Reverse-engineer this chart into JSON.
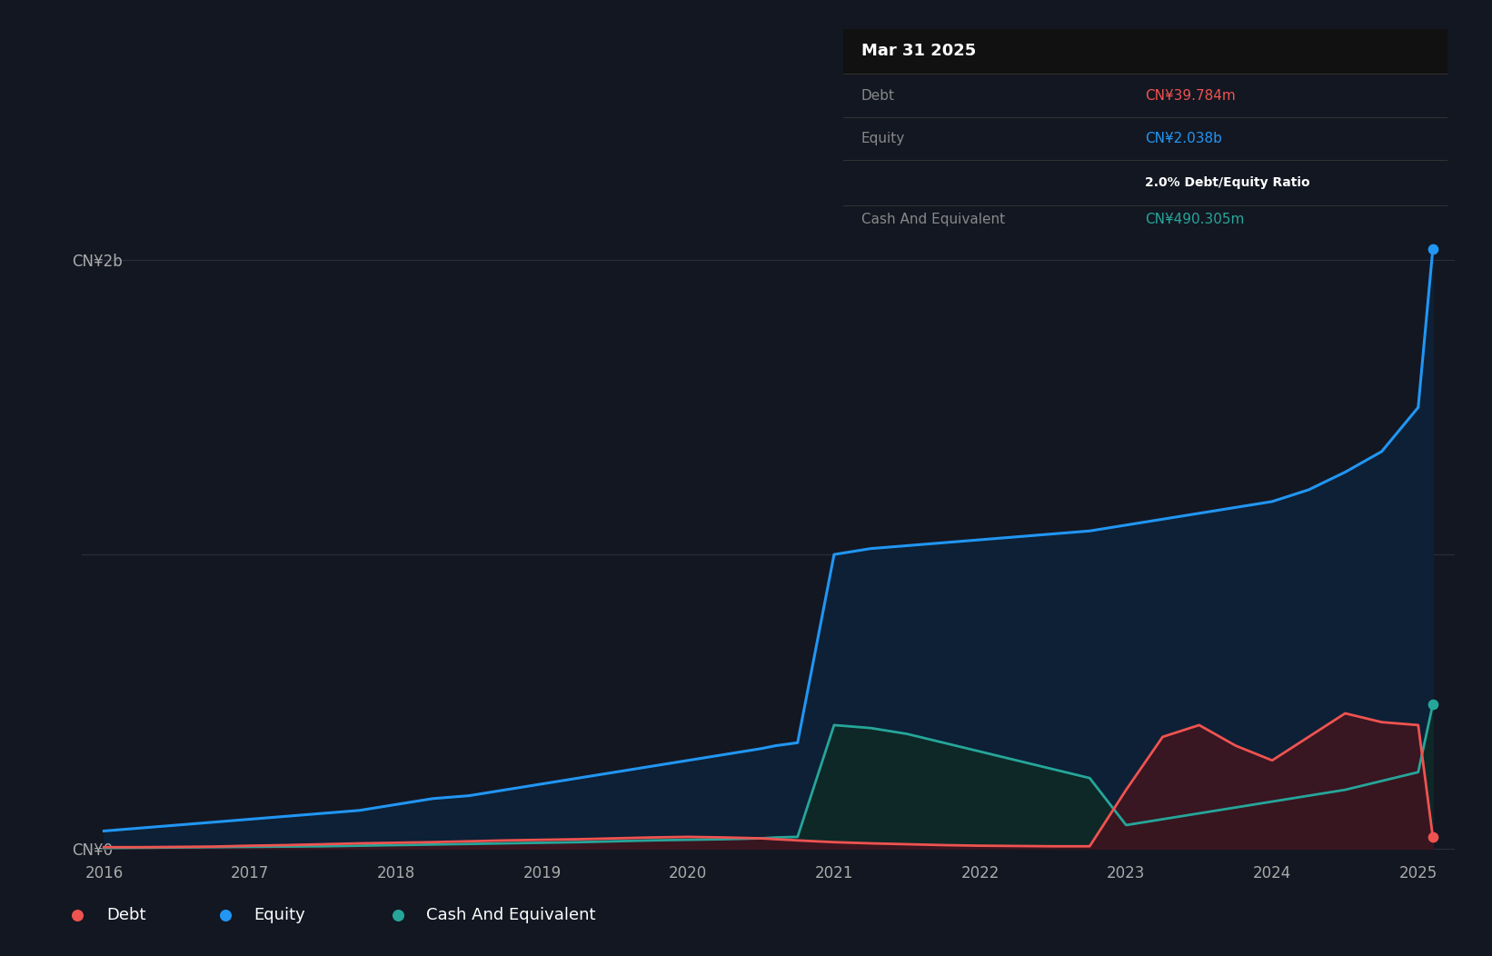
{
  "background_color": "#131722",
  "plot_bg_color": "#131722",
  "equity_color": "#2196f3",
  "debt_color": "#ef5350",
  "cash_color": "#26a69a",
  "equity_fill": "#0d2035",
  "debt_fill": "#3d1520",
  "cash_fill": "#0d2a26",
  "grid_color": "#2a2f3a",
  "ylabel_cn0": "CN¥0",
  "ylabel_cn2b": "CN¥2b",
  "tooltip_title": "Mar 31 2025",
  "tooltip_debt_label": "Debt",
  "tooltip_debt_value": "CN¥39.784m",
  "tooltip_equity_label": "Equity",
  "tooltip_equity_value": "CN¥2.038b",
  "tooltip_ratio": "2.0% Debt/Equity Ratio",
  "tooltip_cash_label": "Cash And Equivalent",
  "tooltip_cash_value": "CN¥490.305m",
  "x_ticks": [
    2016,
    2017,
    2018,
    2019,
    2020,
    2021,
    2022,
    2023,
    2024,
    2025
  ],
  "years": [
    2016.0,
    2016.25,
    2016.5,
    2016.75,
    2017.0,
    2017.25,
    2017.5,
    2017.75,
    2018.0,
    2018.25,
    2018.5,
    2018.75,
    2019.0,
    2019.25,
    2019.5,
    2019.75,
    2020.0,
    2020.25,
    2020.5,
    2020.6,
    2020.75,
    2021.0,
    2021.25,
    2021.5,
    2021.75,
    2022.0,
    2022.25,
    2022.5,
    2022.75,
    2023.0,
    2023.25,
    2023.5,
    2023.75,
    2024.0,
    2024.25,
    2024.5,
    2024.75,
    2025.0,
    2025.1
  ],
  "equity": [
    0.06,
    0.07,
    0.08,
    0.09,
    0.1,
    0.11,
    0.12,
    0.13,
    0.15,
    0.17,
    0.18,
    0.2,
    0.22,
    0.24,
    0.26,
    0.28,
    0.3,
    0.32,
    0.34,
    0.35,
    0.36,
    1.0,
    1.02,
    1.03,
    1.04,
    1.05,
    1.06,
    1.07,
    1.08,
    1.1,
    1.12,
    1.14,
    1.16,
    1.18,
    1.22,
    1.28,
    1.35,
    1.5,
    2.038
  ],
  "debt": [
    0.005,
    0.005,
    0.006,
    0.007,
    0.01,
    0.012,
    0.015,
    0.018,
    0.02,
    0.022,
    0.025,
    0.028,
    0.03,
    0.032,
    0.035,
    0.038,
    0.04,
    0.038,
    0.035,
    0.032,
    0.028,
    0.022,
    0.018,
    0.015,
    0.012,
    0.01,
    0.009,
    0.008,
    0.008,
    0.2,
    0.38,
    0.42,
    0.35,
    0.3,
    0.38,
    0.46,
    0.43,
    0.42,
    0.039784
  ],
  "cash": [
    0.002,
    0.003,
    0.004,
    0.005,
    0.006,
    0.007,
    0.008,
    0.01,
    0.012,
    0.014,
    0.016,
    0.018,
    0.02,
    0.022,
    0.025,
    0.028,
    0.03,
    0.032,
    0.035,
    0.038,
    0.04,
    0.42,
    0.41,
    0.39,
    0.36,
    0.33,
    0.3,
    0.27,
    0.24,
    0.08,
    0.1,
    0.12,
    0.14,
    0.16,
    0.18,
    0.2,
    0.23,
    0.26,
    0.490305
  ]
}
